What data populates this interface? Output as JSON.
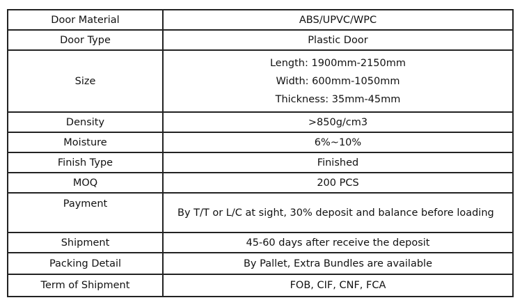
{
  "rows": [
    {
      "label": "Door Material",
      "value": "ABS/UPVC/WPC"
    },
    {
      "label": "Door Type",
      "value": "Plastic Door"
    },
    {
      "label": "Size",
      "lines": [
        "Length: 1900mm-2150mm",
        "Width: 600mm-1050mm",
        "Thickness: 35mm-45mm"
      ]
    },
    {
      "label": "Density",
      "value": ">850g/cm3"
    },
    {
      "label": "Moisture",
      "value": "6%~10%"
    },
    {
      "label": "Finish Type",
      "value": "Finished"
    },
    {
      "label": "MOQ",
      "value": "200 PCS"
    },
    {
      "label": "Payment",
      "value": "By T/T or L/C at sight, 30% deposit and balance before loading"
    },
    {
      "label": "Shipment",
      "value": "45-60 days after receive the deposit"
    },
    {
      "label": "Packing Detail",
      "value": "By Pallet, Extra Bundles are available"
    },
    {
      "label": "Term of Shipment",
      "value": "FOB, CIF, CNF, FCA"
    }
  ]
}
